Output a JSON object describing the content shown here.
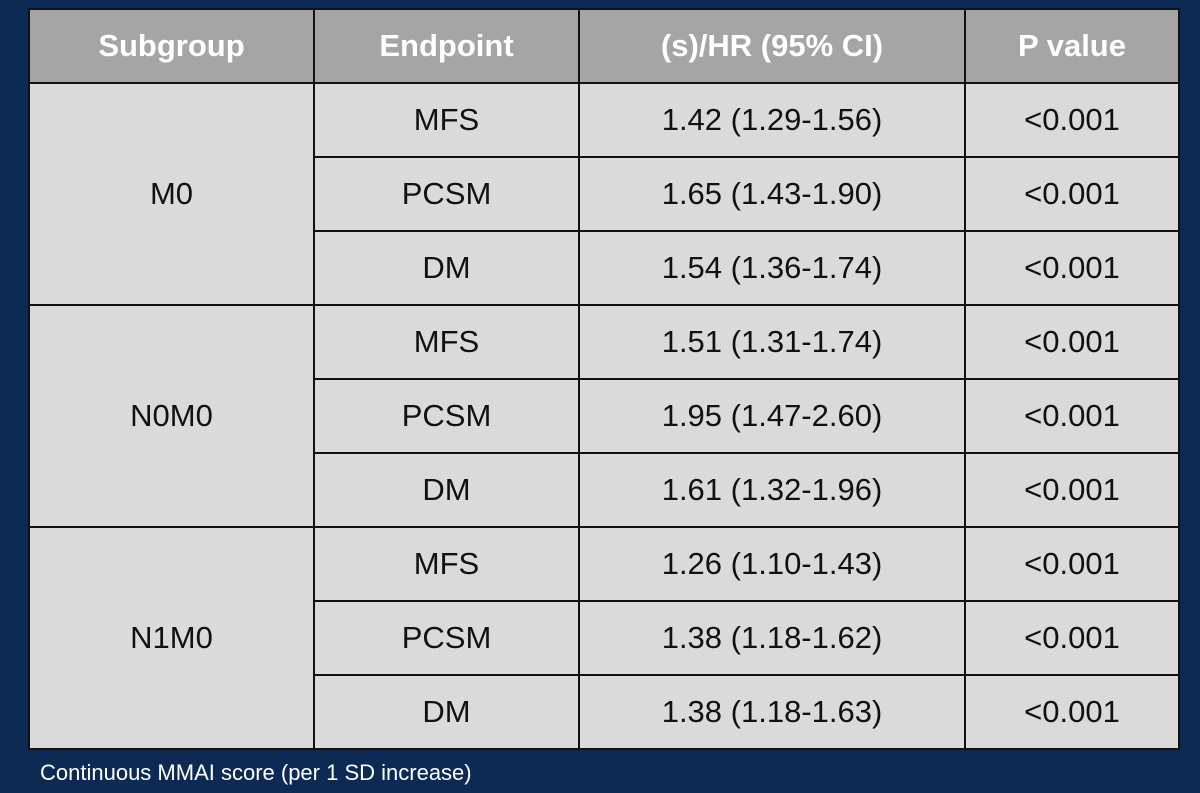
{
  "table": {
    "headers": [
      "Subgroup",
      "Endpoint",
      "(s)/HR (95% CI)",
      "P value"
    ],
    "groups": [
      {
        "subgroup": "M0",
        "rows": [
          {
            "endpoint": "MFS",
            "hr": "1.42 (1.29-1.56)",
            "p": "<0.001"
          },
          {
            "endpoint": "PCSM",
            "hr": "1.65 (1.43-1.90)",
            "p": "<0.001"
          },
          {
            "endpoint": "DM",
            "hr": "1.54 (1.36-1.74)",
            "p": "<0.001"
          }
        ]
      },
      {
        "subgroup": "N0M0",
        "rows": [
          {
            "endpoint": "MFS",
            "hr": "1.51 (1.31-1.74)",
            "p": "<0.001"
          },
          {
            "endpoint": "PCSM",
            "hr": "1.95 (1.47-2.60)",
            "p": "<0.001"
          },
          {
            "endpoint": "DM",
            "hr": "1.61 (1.32-1.96)",
            "p": "<0.001"
          }
        ]
      },
      {
        "subgroup": "N1M0",
        "rows": [
          {
            "endpoint": "MFS",
            "hr": "1.26 (1.10-1.43)",
            "p": "<0.001"
          },
          {
            "endpoint": "PCSM",
            "hr": "1.38 (1.18-1.62)",
            "p": "<0.001"
          },
          {
            "endpoint": "DM",
            "hr": "1.38 (1.18-1.63)",
            "p": "<0.001"
          }
        ]
      }
    ]
  },
  "footnote": "Continuous MMAI score (per 1 SD increase)",
  "colors": {
    "background": "#0d2a55",
    "header_fill": "#a5a5a5",
    "cell_fill": "#dadada"
  }
}
